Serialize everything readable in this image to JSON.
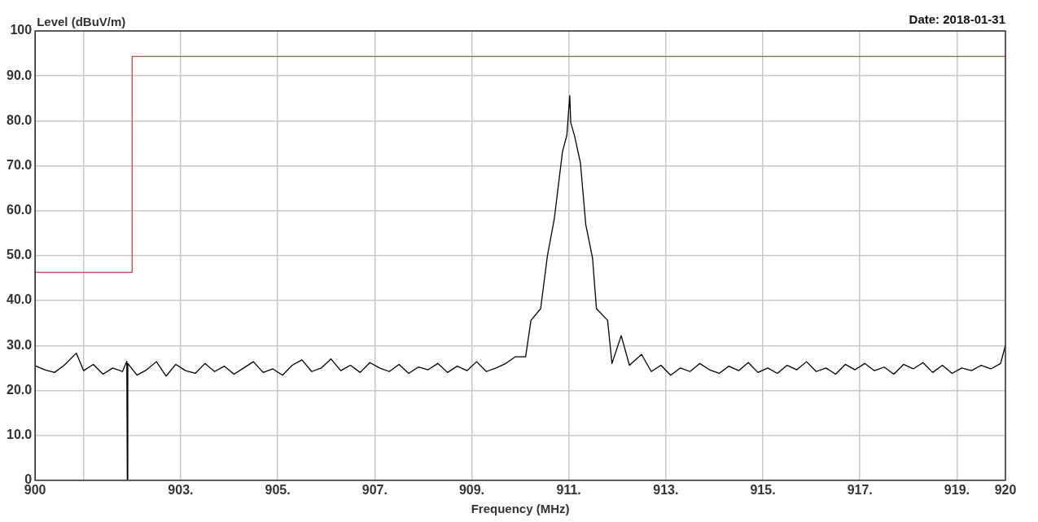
{
  "chart_data": {
    "type": "line",
    "xlabel": "Frequency (MHz)",
    "ylabel": "Level (dBuV/m)",
    "annotations": [
      "Date: 2018-01-31"
    ],
    "xlim": [
      900,
      920
    ],
    "ylim": [
      0,
      100
    ],
    "xticks": [
      900,
      {
        "value": 901,
        "label": null
      },
      {
        "value": 903,
        "label": "903."
      },
      {
        "value": 905,
        "label": "905."
      },
      {
        "value": 907,
        "label": "907."
      },
      {
        "value": 909,
        "label": "909."
      },
      {
        "value": 911,
        "label": "911."
      },
      {
        "value": 913,
        "label": "913."
      },
      {
        "value": 915,
        "label": "915."
      },
      {
        "value": 917,
        "label": "917."
      },
      {
        "value": 919,
        "label": "919."
      },
      920
    ],
    "yticks": [
      0,
      {
        "value": 10,
        "label": "10.0"
      },
      {
        "value": 20,
        "label": "20.0"
      },
      {
        "value": 30,
        "label": "30.0"
      },
      {
        "value": 40,
        "label": "40.0"
      },
      {
        "value": 50,
        "label": "50.0"
      },
      {
        "value": 60,
        "label": "60.0"
      },
      {
        "value": 70,
        "label": "70.0"
      },
      {
        "value": 80,
        "label": "80.0"
      },
      {
        "value": 90,
        "label": "90.0"
      },
      100
    ],
    "grid": true,
    "legend": false,
    "marker": "none",
    "line_style": "solid",
    "series": [
      {
        "color": "#e0404a",
        "x": [
          900,
          902,
          902,
          920
        ],
        "values": [
          46.3,
          46.3,
          94.3,
          94.3
        ]
      },
      {
        "color": "#000000",
        "x": [
          900,
          900.2,
          900.4,
          900.6,
          900.85,
          901,
          901.2,
          901.4,
          901.6,
          901.8,
          901.89,
          901.9,
          901.91,
          902.1,
          902.3,
          902.5,
          902.7,
          902.9,
          903.1,
          903.3,
          903.5,
          903.7,
          903.9,
          904.1,
          904.3,
          904.5,
          904.7,
          904.9,
          905.1,
          905.3,
          905.5,
          905.7,
          905.9,
          906.1,
          906.3,
          906.5,
          906.7,
          906.9,
          907.1,
          907.3,
          907.5,
          907.7,
          907.9,
          908.1,
          908.3,
          908.5,
          908.7,
          908.9,
          909.1,
          909.3,
          909.5,
          909.7,
          909.9,
          910.11,
          910.22,
          910.42,
          910.56,
          910.7,
          910.87,
          910.96,
          911.02,
          911.04,
          911.12,
          911.24,
          911.35,
          911.49,
          911.57,
          911.8,
          911.89,
          912.08,
          912.25,
          912.5,
          912.7,
          912.9,
          913.1,
          913.3,
          913.5,
          913.7,
          913.9,
          914.1,
          914.3,
          914.5,
          914.7,
          914.9,
          915.1,
          915.3,
          915.5,
          915.7,
          915.9,
          916.1,
          916.3,
          916.5,
          916.7,
          916.9,
          917.1,
          917.3,
          917.5,
          917.7,
          917.9,
          918.1,
          918.3,
          918.5,
          918.7,
          918.9,
          919.1,
          919.3,
          919.5,
          919.7,
          919.9,
          920
        ],
        "values": [
          25.5,
          24.6,
          24.0,
          25.6,
          28.3,
          24.4,
          25.8,
          23.6,
          25.0,
          24.2,
          26.5,
          0,
          26.0,
          23.4,
          24.6,
          26.4,
          23.2,
          25.8,
          24.4,
          23.8,
          26.0,
          24.2,
          25.4,
          23.6,
          25.0,
          26.4,
          24.0,
          24.8,
          23.4,
          25.6,
          26.8,
          24.2,
          25.0,
          27.0,
          24.4,
          25.6,
          24.0,
          26.2,
          25.0,
          24.2,
          25.8,
          23.8,
          25.2,
          24.6,
          26.0,
          24.0,
          25.4,
          24.4,
          26.4,
          24.2,
          25.0,
          26.0,
          27.5,
          27.5,
          35.6,
          38.2,
          50,
          58.1,
          73.1,
          76.8,
          85.6,
          79.6,
          76.6,
          70.6,
          56.9,
          49.4,
          38.2,
          35.6,
          26,
          32.2,
          25.6,
          28.0,
          24.2,
          25.6,
          23.4,
          25.0,
          24.2,
          26.0,
          24.6,
          23.8,
          25.4,
          24.4,
          26.2,
          24.0,
          25.0,
          23.8,
          25.6,
          24.6,
          26.4,
          24.2,
          25.0,
          23.6,
          25.8,
          24.6,
          26.0,
          24.4,
          25.2,
          23.6,
          25.8,
          24.8,
          26.2,
          24.0,
          25.6,
          23.8,
          25.0,
          24.4,
          25.6,
          24.8,
          26.0,
          30.0
        ]
      }
    ]
  }
}
